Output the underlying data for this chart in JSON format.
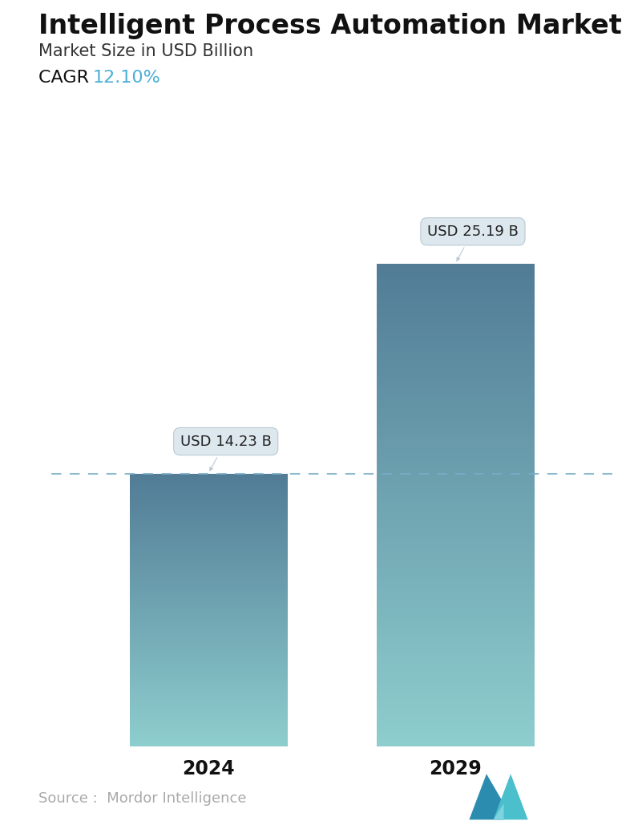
{
  "title": "Intelligent Process Automation Market",
  "subtitle": "Market Size in USD Billion",
  "cagr_label": "CAGR  ",
  "cagr_value": "12.10%",
  "cagr_color": "#4BAFD6",
  "categories": [
    "2024",
    "2029"
  ],
  "values": [
    14.23,
    25.19
  ],
  "bar_labels": [
    "USD 14.23 B",
    "USD 25.19 B"
  ],
  "bar_top_color": "#527C96",
  "bar_bottom_color": "#8ECECE",
  "dashed_line_color": "#7AAEC8",
  "dashed_line_value": 14.23,
  "source_text": "Source :  Mordor Intelligence",
  "source_color": "#AAAAAA",
  "background_color": "#ffffff",
  "title_fontsize": 24,
  "subtitle_fontsize": 15,
  "cagr_fontsize": 16,
  "bar_label_fontsize": 13,
  "tick_fontsize": 17,
  "source_fontsize": 13,
  "ylim": [
    0,
    29
  ],
  "positions": [
    0.28,
    0.72
  ],
  "bar_width": 0.28,
  "xlim": [
    0,
    1
  ]
}
